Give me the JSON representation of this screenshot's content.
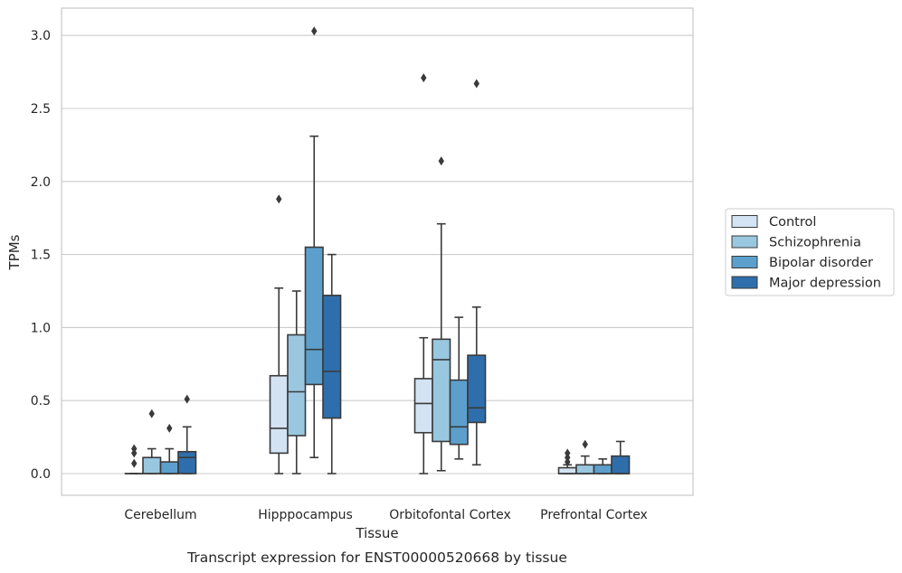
{
  "chart_data": {
    "type": "box",
    "xlabel": "Tissue",
    "ylabel": "TPMs",
    "caption": "Transcript expression for ENST00000520668 by tissue",
    "ylim": [
      -0.15,
      3.2
    ],
    "yticks": [
      "0.0",
      "0.5",
      "1.0",
      "1.5",
      "2.0",
      "2.5",
      "3.0"
    ],
    "grid": "horizontal",
    "legend_position": "right",
    "categories": [
      "Cerebellum",
      "Hipppocampus",
      "Orbitofontal Cortex",
      "Prefrontal Cortex"
    ],
    "series": [
      {
        "name": "Control",
        "color": "#d3e3f3",
        "boxes": [
          {
            "whislo": 0.0,
            "q1": 0.0,
            "med": 0.0,
            "q3": 0.0,
            "whishi": 0.0,
            "fliers": [
              0.07,
              0.14,
              0.17
            ]
          },
          {
            "whislo": 0.0,
            "q1": 0.14,
            "med": 0.31,
            "q3": 0.67,
            "whishi": 1.27,
            "fliers": [
              1.88
            ]
          },
          {
            "whislo": 0.0,
            "q1": 0.28,
            "med": 0.48,
            "q3": 0.65,
            "whishi": 0.93,
            "fliers": [
              2.71
            ]
          },
          {
            "whislo": 0.0,
            "q1": 0.0,
            "med": 0.0,
            "q3": 0.04,
            "whishi": 0.06,
            "fliers": [
              0.08,
              0.11,
              0.14
            ]
          }
        ]
      },
      {
        "name": "Schizophrenia",
        "color": "#9ac7e0",
        "boxes": [
          {
            "whislo": 0.0,
            "q1": 0.0,
            "med": 0.0,
            "q3": 0.11,
            "whishi": 0.17,
            "fliers": [
              0.41
            ]
          },
          {
            "whislo": 0.0,
            "q1": 0.26,
            "med": 0.56,
            "q3": 0.95,
            "whishi": 1.25,
            "fliers": []
          },
          {
            "whislo": 0.02,
            "q1": 0.22,
            "med": 0.78,
            "q3": 0.92,
            "whishi": 1.71,
            "fliers": [
              2.14
            ]
          },
          {
            "whislo": 0.0,
            "q1": 0.0,
            "med": 0.0,
            "q3": 0.06,
            "whishi": 0.12,
            "fliers": [
              0.2
            ]
          }
        ]
      },
      {
        "name": "Bipolar disorder",
        "color": "#5c9fcc",
        "boxes": [
          {
            "whislo": 0.0,
            "q1": 0.0,
            "med": 0.0,
            "q3": 0.08,
            "whishi": 0.17,
            "fliers": [
              0.31
            ]
          },
          {
            "whislo": 0.11,
            "q1": 0.61,
            "med": 0.85,
            "q3": 1.55,
            "whishi": 2.31,
            "fliers": [
              3.03
            ]
          },
          {
            "whislo": 0.1,
            "q1": 0.2,
            "med": 0.32,
            "q3": 0.64,
            "whishi": 1.07,
            "fliers": []
          },
          {
            "whislo": 0.0,
            "q1": 0.0,
            "med": 0.0,
            "q3": 0.06,
            "whishi": 0.1,
            "fliers": []
          }
        ]
      },
      {
        "name": "Major depression",
        "color": "#2f6eac",
        "boxes": [
          {
            "whislo": 0.0,
            "q1": 0.0,
            "med": 0.11,
            "q3": 0.15,
            "whishi": 0.32,
            "fliers": [
              0.51
            ]
          },
          {
            "whislo": 0.0,
            "q1": 0.38,
            "med": 0.7,
            "q3": 1.22,
            "whishi": 1.5,
            "fliers": []
          },
          {
            "whislo": 0.06,
            "q1": 0.35,
            "med": 0.45,
            "q3": 0.81,
            "whishi": 1.14,
            "fliers": [
              2.67
            ]
          },
          {
            "whislo": 0.0,
            "q1": 0.0,
            "med": 0.0,
            "q3": 0.12,
            "whishi": 0.22,
            "fliers": []
          }
        ]
      }
    ]
  }
}
